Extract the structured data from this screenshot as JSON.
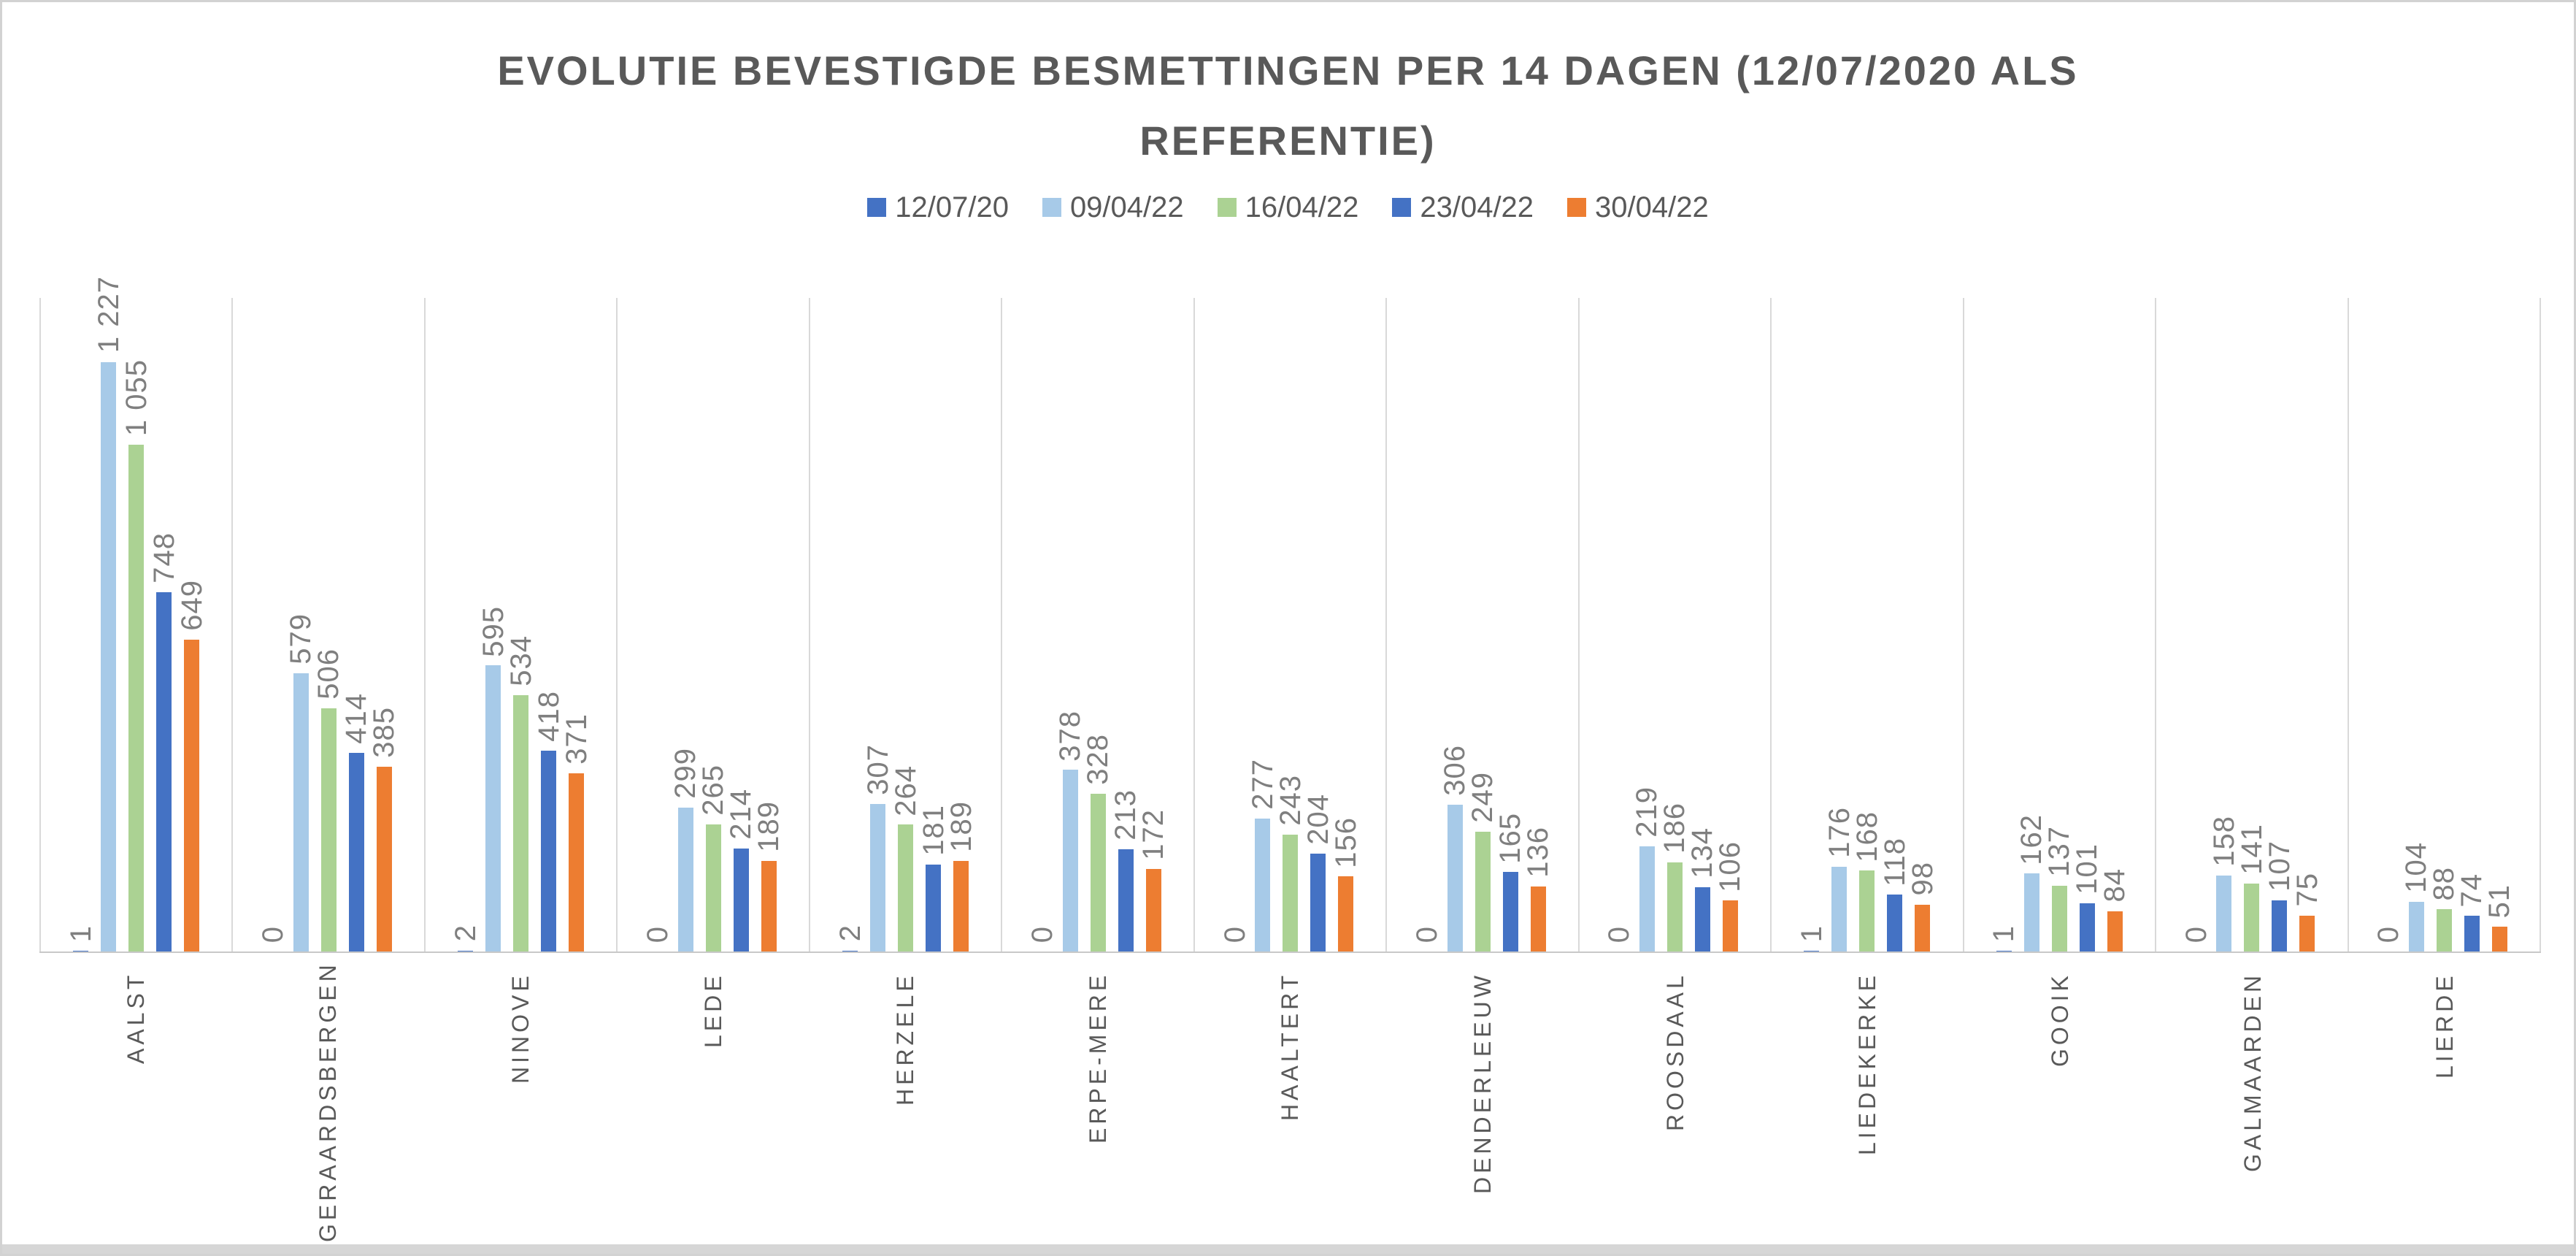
{
  "style": {
    "background": "#FFFFFF",
    "frame_border_color": "#D2D2D2",
    "bottom_strip_color": "#D6D6D6",
    "gridline_color": "#D9D9D9",
    "axis_line_color": "#C8C8C8",
    "title_color": "#595959",
    "legend_text_color": "#595959",
    "category_label_color": "#595959",
    "value_label_color": "#7F7F7F"
  },
  "chart_data": {
    "type": "bar",
    "title": "EVOLUTIE BEVESTIGDE BESMETTINGEN PER 14 DAGEN (12/07/2020 ALS REFERENTIE)",
    "title_lines": [
      "EVOLUTIE BEVESTIGDE BESMETTINGEN PER 14 DAGEN (12/07/2020 ALS",
      "REFERENTIE)"
    ],
    "categories": [
      "AALST",
      "GERAARDSBERGEN",
      "NINOVE",
      "LEDE",
      "HERZELE",
      "ERPE-MERE",
      "HAALTERT",
      "DENDERLEEUW",
      "ROOSDAAL",
      "LIEDEKERKE",
      "GOOIK",
      "GALMAARDEN",
      "LIERDE"
    ],
    "series": [
      {
        "name": "12/07/20",
        "color": "#4472C4",
        "values": [
          1,
          0,
          2,
          0,
          2,
          0,
          0,
          0,
          0,
          1,
          1,
          0,
          0
        ]
      },
      {
        "name": "09/04/22",
        "color": "#A7CAE8",
        "values": [
          1227,
          579,
          595,
          299,
          307,
          378,
          277,
          306,
          219,
          176,
          162,
          158,
          104
        ]
      },
      {
        "name": "16/04/22",
        "color": "#ABD293",
        "values": [
          1055,
          506,
          534,
          265,
          264,
          328,
          243,
          249,
          186,
          168,
          137,
          141,
          88
        ]
      },
      {
        "name": "23/04/22",
        "color": "#4472C4",
        "values": [
          748,
          414,
          418,
          214,
          181,
          213,
          204,
          165,
          134,
          118,
          101,
          107,
          74
        ]
      },
      {
        "name": "30/04/22",
        "color": "#ED7D31",
        "values": [
          649,
          385,
          371,
          189,
          189,
          172,
          156,
          136,
          106,
          98,
          84,
          75,
          51
        ]
      }
    ],
    "ylim": [
      0,
      1360
    ],
    "y_axis_visible": false,
    "grid": "vertical-category-separators",
    "legend_position": "top",
    "value_labels": "rotated 90deg, outside end, thousands separated by space"
  }
}
